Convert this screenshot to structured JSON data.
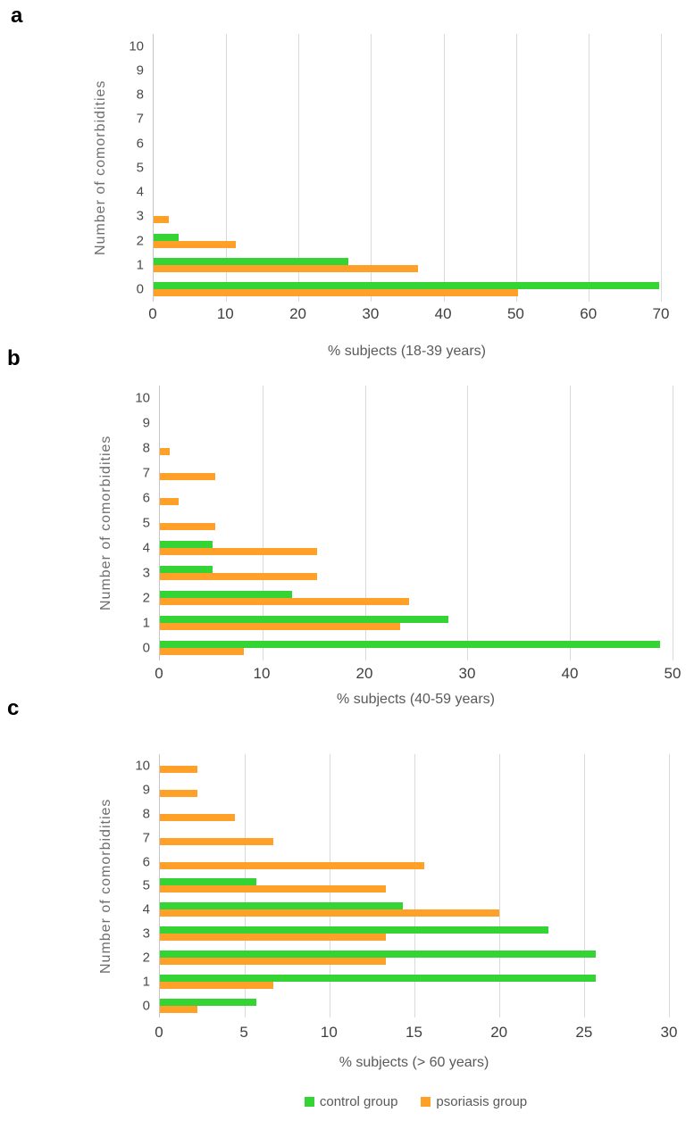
{
  "figure": {
    "legend": [
      {
        "key": "control",
        "label": "control group",
        "color": "#33d433"
      },
      {
        "key": "psoriasis",
        "label": "psoriasis group",
        "color": "#ffa029"
      }
    ],
    "colors": {
      "control_green": "#33d433",
      "psoriasis_orange": "#ffa029",
      "gridline": "#d9d9d9",
      "axis_line": "#c6c6c6",
      "tick_text": "#3f3f3f",
      "title_text": "#595959"
    }
  },
  "chart_data": [
    {
      "panel": "a",
      "type": "bar",
      "orientation": "horizontal",
      "xlabel": "% subjects (18-39 years)",
      "ylabel": "Number of comorbidities",
      "categories": [
        0,
        1,
        2,
        3,
        4,
        5,
        6,
        7,
        8,
        9,
        10
      ],
      "series": [
        {
          "key": "control",
          "name": "control group",
          "color": "#33d433",
          "values": [
            69.8,
            26.9,
            3.5,
            0,
            0,
            0,
            0,
            0,
            0,
            0,
            0
          ]
        },
        {
          "key": "psoriasis",
          "name": "psoriasis group",
          "color": "#ffa029",
          "values": [
            50.3,
            36.5,
            11.3,
            2.1,
            0,
            0,
            0,
            0,
            0,
            0,
            0
          ]
        }
      ],
      "xlim": [
        0,
        70
      ],
      "xticks": [
        0,
        10,
        20,
        30,
        40,
        50,
        60,
        70
      ],
      "grid": true,
      "legend_position": "shared-bottom"
    },
    {
      "panel": "b",
      "type": "bar",
      "orientation": "horizontal",
      "xlabel": "% subjects (40-59 years)",
      "ylabel": "Number of comorbidities",
      "categories": [
        0,
        1,
        2,
        3,
        4,
        5,
        6,
        7,
        8,
        9,
        10
      ],
      "series": [
        {
          "key": "control",
          "name": "control group",
          "color": "#33d433",
          "values": [
            48.8,
            28.1,
            12.9,
            5.1,
            5.1,
            0,
            0,
            0,
            0,
            0,
            0
          ]
        },
        {
          "key": "psoriasis",
          "name": "psoriasis group",
          "color": "#ffa029",
          "values": [
            8.2,
            23.4,
            24.3,
            15.3,
            15.3,
            5.4,
            1.8,
            5.4,
            1.0,
            0,
            0
          ]
        }
      ],
      "xlim": [
        0,
        50
      ],
      "xticks": [
        0,
        10,
        20,
        30,
        40,
        50
      ],
      "grid": true,
      "legend_position": "shared-bottom"
    },
    {
      "panel": "c",
      "type": "bar",
      "orientation": "horizontal",
      "xlabel": "% subjects (> 60 years)",
      "ylabel": "Number of comorbidities",
      "categories": [
        0,
        1,
        2,
        3,
        4,
        5,
        6,
        7,
        8,
        9,
        10
      ],
      "series": [
        {
          "key": "control",
          "name": "control group",
          "color": "#33d433",
          "values": [
            5.7,
            25.7,
            25.7,
            22.9,
            14.3,
            5.7,
            0,
            0,
            0,
            0,
            0
          ]
        },
        {
          "key": "psoriasis",
          "name": "psoriasis group",
          "color": "#ffa029",
          "values": [
            2.2,
            6.7,
            13.3,
            13.3,
            20.0,
            13.3,
            15.6,
            6.7,
            4.4,
            2.2,
            2.2
          ]
        }
      ],
      "xlim": [
        0,
        30
      ],
      "xticks": [
        0,
        5,
        10,
        15,
        20,
        25,
        30
      ],
      "grid": true,
      "legend_position": "shared-bottom"
    }
  ]
}
